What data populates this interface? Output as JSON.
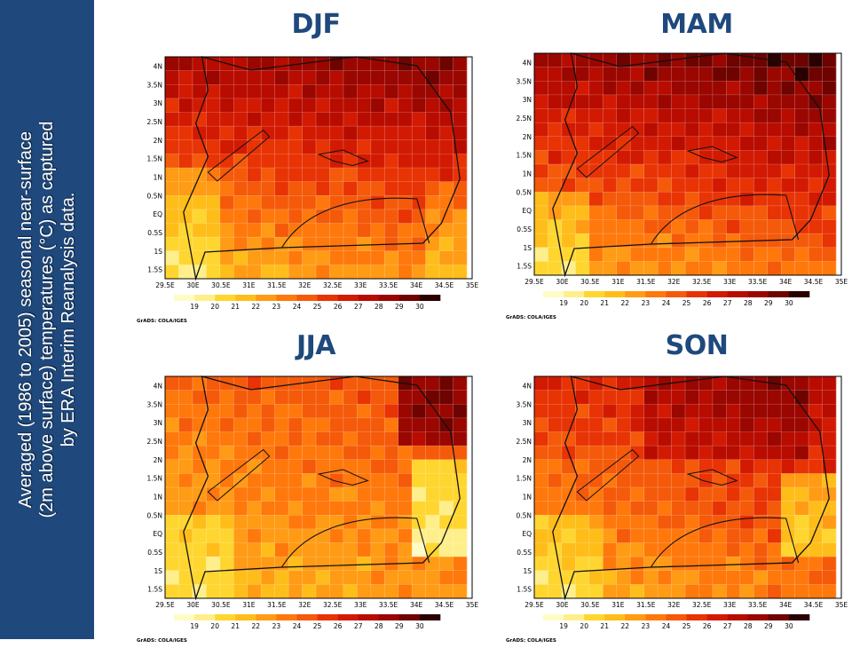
{
  "sidebar": {
    "caption_lines": [
      "Averaged (1986 to 2005) seasonal near-surface",
      "(2m above surface) temperatures (°C) as captured",
      "by ERA Interim Reanalysis data."
    ]
  },
  "colors": {
    "sidebar_bg": "#1f497d",
    "title": "#1f497d",
    "palette": [
      "#fffbc7",
      "#ffef8c",
      "#ffd630",
      "#ffbd1a",
      "#ff9b14",
      "#ff780c",
      "#f45a0a",
      "#e83305",
      "#d21a02",
      "#b80c00",
      "#9a0600",
      "#6e0300",
      "#2a0000"
    ]
  },
  "maps": [
    {
      "season": "DJF",
      "credit": "GrADS: COLA/IGES",
      "pattern": "djf"
    },
    {
      "season": "MAM",
      "credit": "GrADS: COLA/IGES",
      "pattern": "mam"
    },
    {
      "season": "JJA",
      "credit": "GrADS: COLA/IGES",
      "pattern": "jja"
    },
    {
      "season": "SON",
      "credit": "GrADS: COLA/IGES",
      "pattern": "son"
    }
  ],
  "axes": {
    "x_labels": [
      "29.5E",
      "30E",
      "30.5E",
      "31E",
      "31.5E",
      "32E",
      "32.5E",
      "33E",
      "33.5E",
      "34E",
      "34.5E",
      "35E"
    ],
    "y_labels": [
      "4N",
      "3.5N",
      "3N",
      "2.5N",
      "2N",
      "1.5N",
      "1N",
      "0.5N",
      "EQ",
      "0.5S",
      "1S",
      "1.5S"
    ]
  },
  "colorbar": {
    "labels": [
      "19",
      "20",
      "21",
      "22",
      "23",
      "24",
      "25",
      "26",
      "27",
      "28",
      "29",
      "30"
    ]
  }
}
